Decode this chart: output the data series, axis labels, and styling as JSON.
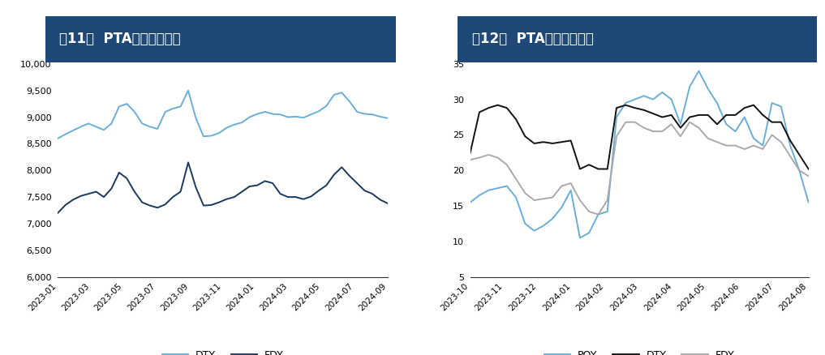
{
  "fig11_title": "图11：  PTA下游产品价格",
  "fig12_title": "图12：  PTA下游产品库存",
  "title_bg_color": "#1e4976",
  "title_text_color": "#ffffff",
  "fig11_xticks": [
    "2023-01",
    "2023-03",
    "2023-05",
    "2023-07",
    "2023-09",
    "2023-11",
    "2024-01",
    "2024-03",
    "2024-05",
    "2024-07",
    "2024-09"
  ],
  "fig12_xticks": [
    "2023-10",
    "2023-11",
    "2023-12",
    "2024-01",
    "2024-02",
    "2024-03",
    "2024-04",
    "2024-05",
    "2024-06",
    "2024-07",
    "2024-08"
  ],
  "fig11_ylim": [
    6000,
    10000
  ],
  "fig11_yticks": [
    6000,
    6500,
    7000,
    7500,
    8000,
    8500,
    9000,
    9500,
    10000
  ],
  "fig12_ylim": [
    5,
    35
  ],
  "fig12_yticks": [
    5,
    10,
    15,
    20,
    25,
    30,
    35
  ],
  "dty_color": "#6baed6",
  "fdy_color": "#1a3a5c",
  "poy_color": "#6baed6",
  "dty2_color": "#111111",
  "fdy2_color": "#aaaaaa",
  "fig11_dty": [
    8600,
    8680,
    8750,
    8820,
    8880,
    8820,
    8760,
    8880,
    9200,
    9250,
    9100,
    8880,
    8820,
    8780,
    9100,
    9160,
    9200,
    9500,
    8980,
    8640,
    8650,
    8700,
    8800,
    8860,
    8900,
    9000,
    9060,
    9100,
    9060,
    9050,
    9000,
    9010,
    8990,
    9050,
    9110,
    9210,
    9420,
    9460,
    9300,
    9100,
    9060,
    9050,
    9010,
    8980
  ],
  "fig11_fdy": [
    7200,
    7350,
    7450,
    7520,
    7560,
    7600,
    7500,
    7660,
    7960,
    7850,
    7600,
    7400,
    7340,
    7300,
    7360,
    7500,
    7600,
    8150,
    7680,
    7340,
    7350,
    7400,
    7460,
    7500,
    7600,
    7700,
    7720,
    7800,
    7760,
    7560,
    7500,
    7500,
    7460,
    7510,
    7620,
    7720,
    7920,
    8060,
    7900,
    7760,
    7620,
    7560,
    7450,
    7380
  ],
  "fig12_poy": [
    15.5,
    16.5,
    17.2,
    17.5,
    17.8,
    16.2,
    12.5,
    11.5,
    12.2,
    13.2,
    14.8,
    17.2,
    10.5,
    11.2,
    13.8,
    14.2,
    27.5,
    29.5,
    30.0,
    30.5,
    30.0,
    31.0,
    30.0,
    26.5,
    31.8,
    34.0,
    31.5,
    29.5,
    26.5,
    25.5,
    27.5,
    24.5,
    23.5,
    29.5,
    29.0,
    23.5,
    20.0,
    15.5
  ],
  "fig12_dty": [
    22.5,
    28.2,
    28.8,
    29.2,
    28.8,
    27.2,
    24.8,
    23.8,
    24.0,
    23.8,
    24.0,
    24.2,
    20.2,
    20.8,
    20.2,
    20.2,
    28.8,
    29.2,
    28.8,
    28.5,
    28.0,
    27.5,
    27.8,
    26.0,
    27.5,
    27.8,
    27.8,
    26.5,
    27.8,
    27.8,
    28.8,
    29.2,
    27.8,
    26.8,
    26.8,
    24.2,
    22.2,
    20.2
  ],
  "fig12_fdy": [
    21.5,
    21.8,
    22.2,
    21.8,
    20.8,
    18.8,
    16.8,
    15.8,
    16.0,
    16.2,
    17.8,
    18.2,
    15.8,
    14.2,
    13.8,
    15.8,
    24.8,
    26.8,
    26.8,
    26.0,
    25.5,
    25.5,
    26.5,
    24.8,
    26.8,
    26.0,
    24.5,
    24.0,
    23.5,
    23.5,
    23.0,
    23.5,
    23.0,
    25.0,
    24.0,
    22.0,
    20.0,
    19.2
  ]
}
